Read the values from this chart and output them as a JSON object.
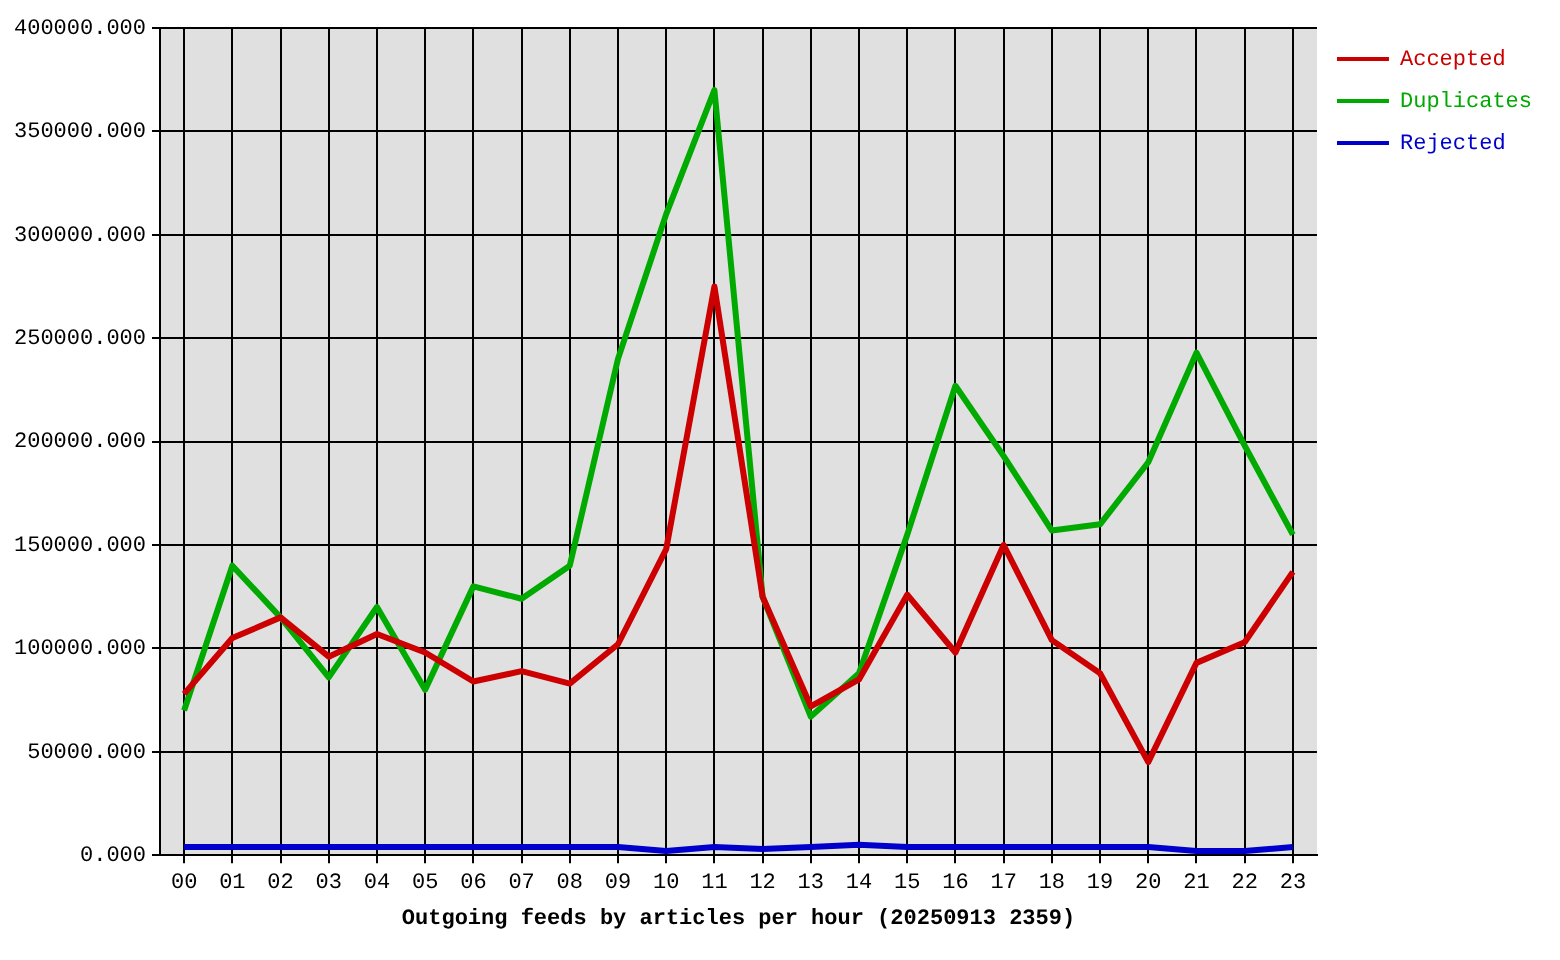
{
  "chart_data": {
    "type": "line",
    "xlabel": "Outgoing feeds by articles per hour (20250913 2359)",
    "categories": [
      "00",
      "01",
      "02",
      "03",
      "04",
      "05",
      "06",
      "07",
      "08",
      "09",
      "10",
      "11",
      "12",
      "13",
      "14",
      "15",
      "16",
      "17",
      "18",
      "19",
      "20",
      "21",
      "22",
      "23"
    ],
    "series": [
      {
        "name": "Accepted",
        "color": "#cc0000",
        "values": [
          78000,
          105000,
          115000,
          96000,
          107000,
          98000,
          84000,
          89000,
          83000,
          102000,
          148000,
          275000,
          125000,
          72000,
          85000,
          126000,
          98000,
          150000,
          104000,
          88000,
          45000,
          93000,
          103000,
          137000
        ]
      },
      {
        "name": "Duplicates",
        "color": "#00aa00",
        "values": [
          70000,
          140000,
          115000,
          86000,
          120000,
          80000,
          130000,
          124000,
          140000,
          240000,
          310000,
          370000,
          125000,
          67000,
          88000,
          155000,
          227000,
          193000,
          157000,
          160000,
          190000,
          243000,
          198000,
          155000
        ]
      },
      {
        "name": "Rejected",
        "color": "#0000cc",
        "values": [
          4000,
          4000,
          4000,
          4000,
          4000,
          4000,
          4000,
          4000,
          4000,
          4000,
          2000,
          4000,
          3000,
          4000,
          5000,
          4000,
          4000,
          4000,
          4000,
          4000,
          4000,
          2000,
          2000,
          4000
        ]
      }
    ],
    "ylim": [
      0,
      400000
    ],
    "yticks": [
      {
        "value": 0,
        "label": "0.000"
      },
      {
        "value": 50000,
        "label": "50000.000"
      },
      {
        "value": 100000,
        "label": "100000.000"
      },
      {
        "value": 150000,
        "label": "150000.000"
      },
      {
        "value": 200000,
        "label": "200000.000"
      },
      {
        "value": 250000,
        "label": "250000.000"
      },
      {
        "value": 300000,
        "label": "300000.000"
      },
      {
        "value": 350000,
        "label": "350000.000"
      },
      {
        "value": 400000,
        "label": "400000.000"
      }
    ],
    "grid": true,
    "legend": "top right",
    "line_style": "solid"
  }
}
